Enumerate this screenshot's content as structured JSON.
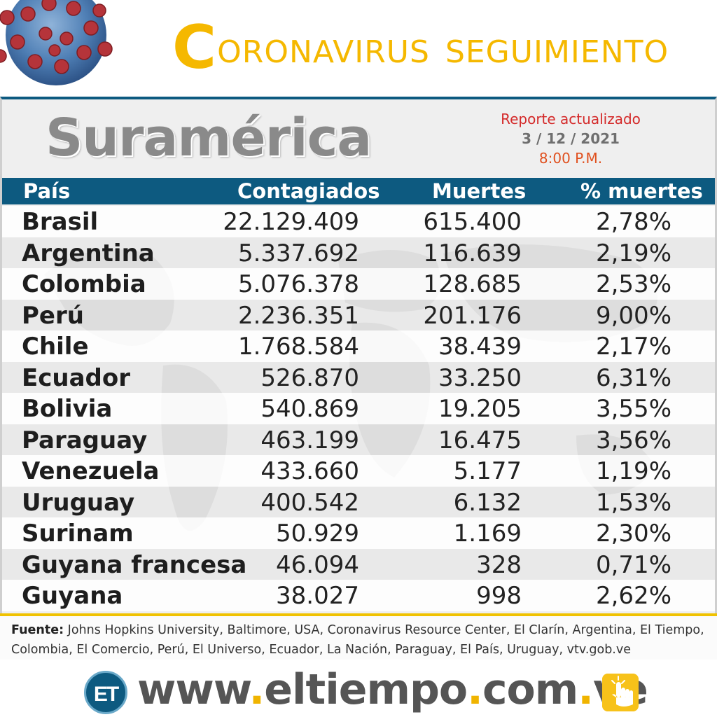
{
  "header": {
    "title_initial": "C",
    "title_rest": "ORONAVIRUS",
    "title_second": "SEGUIMIENTO",
    "virus_icon": "coronavirus-icon"
  },
  "region": "Suramérica",
  "report": {
    "label": "Reporte actualizado",
    "date": "3 / 12 / 2021",
    "time": "8:00 P.M."
  },
  "table": {
    "headers": [
      "País",
      "Contagiados",
      "Muertes",
      "% muertes"
    ],
    "rows": [
      {
        "country": "Brasil",
        "cases": "22.129.409",
        "deaths": "615.400",
        "pct": "2,78%"
      },
      {
        "country": "Argentina",
        "cases": "5.337.692",
        "deaths": "116.639",
        "pct": "2,19%"
      },
      {
        "country": "Colombia",
        "cases": "5.076.378",
        "deaths": "128.685",
        "pct": "2,53%"
      },
      {
        "country": "Perú",
        "cases": "2.236.351",
        "deaths": "201.176",
        "pct": "9,00%"
      },
      {
        "country": "Chile",
        "cases": "1.768.584",
        "deaths": "38.439",
        "pct": "2,17%"
      },
      {
        "country": "Ecuador",
        "cases": "526.870",
        "deaths": "33.250",
        "pct": "6,31%"
      },
      {
        "country": "Bolivia",
        "cases": "540.869",
        "deaths": "19.205",
        "pct": "3,55%"
      },
      {
        "country": "Paraguay",
        "cases": "463.199",
        "deaths": "16.475",
        "pct": "3,56%"
      },
      {
        "country": "Venezuela",
        "cases": "433.660",
        "deaths": "5.177",
        "pct": "1,19%"
      },
      {
        "country": "Uruguay",
        "cases": "400.542",
        "deaths": "6.132",
        "pct": "1,53%"
      },
      {
        "country": "Surinam",
        "cases": "50.929",
        "deaths": "1.169",
        "pct": "2,30%"
      },
      {
        "country": "Guyana francesa",
        "cases": "46.094",
        "deaths": "328",
        "pct": "0,71%"
      },
      {
        "country": "Guyana",
        "cases": "38.027",
        "deaths": "998",
        "pct": "2,62%"
      }
    ]
  },
  "source": {
    "label": "Fuente:",
    "text": " Johns Hopkins University, Baltimore, USA, Coronavirus Resource Center,  El Clarín, Argentina, El Tiempo, Colombia, El Comercio, Perú, El Universo, Ecuador, La Nación, Paraguay, El País, Uruguay, vtv.gob.ve"
  },
  "footer": {
    "logo_text": "ET",
    "url_parts": [
      "www",
      ".",
      "eltiempo",
      ".",
      "com",
      ".",
      "ve"
    ],
    "hand_icon": "pointing-hand-icon"
  },
  "colors": {
    "title": "#f5b800",
    "header_bar": "#0d5a80",
    "report_label": "#d42a2a",
    "report_time": "#e0501e",
    "dot": "#f0b400"
  }
}
